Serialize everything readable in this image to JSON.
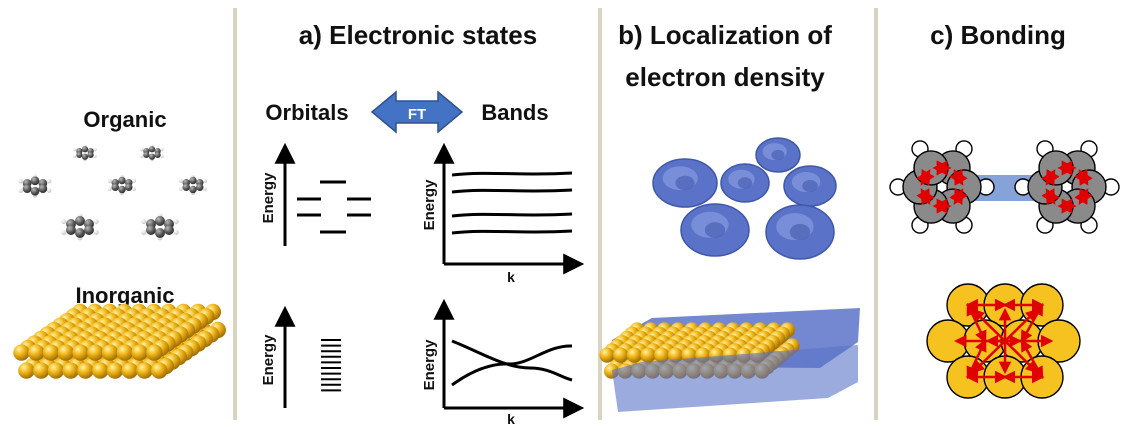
{
  "left": {
    "organic_label": "Organic",
    "inorganic_label": "Inorganic"
  },
  "panel_a": {
    "title": "a) Electronic states",
    "orbitals_label": "Orbitals",
    "bands_label": "Bands",
    "ft_label": "FT",
    "energy_label": "Energy",
    "k_label": "k"
  },
  "panel_b": {
    "title_line1": "b) Localization of",
    "title_line2": "electron density"
  },
  "panel_c": {
    "title": "c) Bonding"
  },
  "colors": {
    "divider": "#d9d3c2",
    "arrow_blue": "#4472c4",
    "density_blue": "#5a73c8",
    "gold": "#f2b81a",
    "gold_dark": "#c98d0c",
    "carbon": "#666666",
    "red": "#e00000"
  }
}
